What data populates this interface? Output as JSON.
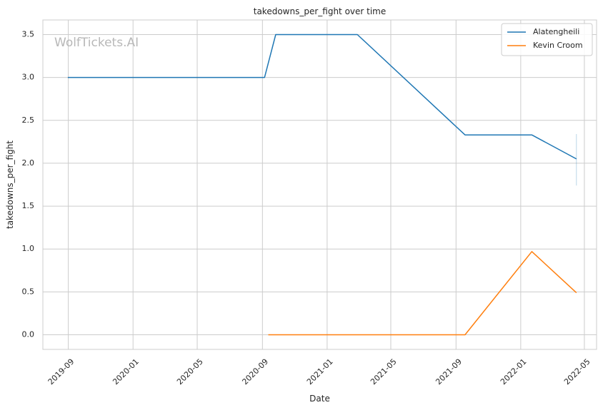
{
  "chart_data": {
    "type": "line",
    "title": "takedowns_per_fight over time",
    "xlabel": "Date",
    "ylabel": "takedowns_per_fight",
    "watermark": "WolfTickets.AI",
    "xlim": [
      "2019-07-15",
      "2022-05-24"
    ],
    "ylim": [
      -0.17,
      3.67
    ],
    "x_ticks": [
      "2019-09-01",
      "2020-01-01",
      "2020-05-01",
      "2020-09-01",
      "2021-01-01",
      "2021-05-01",
      "2021-09-01",
      "2022-01-01",
      "2022-05-01"
    ],
    "x_tick_labels": [
      "2019-09",
      "2020-01",
      "2020-05",
      "2020-09",
      "2021-01",
      "2021-05",
      "2021-09",
      "2022-01",
      "2022-05"
    ],
    "y_ticks": [
      0.0,
      0.5,
      1.0,
      1.5,
      2.0,
      2.5,
      3.0,
      3.5
    ],
    "y_tick_labels": [
      "0.0",
      "0.5",
      "1.0",
      "1.5",
      "2.0",
      "2.5",
      "3.0",
      "3.5"
    ],
    "grid": true,
    "legend_position": "top-right",
    "series": [
      {
        "name": "Alatengheili",
        "color": "#1f77b4",
        "x": [
          "2019-08-31",
          "2020-09-05",
          "2020-09-26",
          "2021-02-27",
          "2021-09-18",
          "2022-01-22",
          "2022-04-16"
        ],
        "y": [
          3.0,
          3.0,
          3.5,
          3.5,
          2.33,
          2.33,
          2.05
        ]
      },
      {
        "name": "Kevin Croom",
        "color": "#ff7f0e",
        "x": [
          "2020-09-12",
          "2021-09-18",
          "2022-01-22",
          "2022-04-16"
        ],
        "y": [
          0.0,
          0.0,
          0.97,
          0.49
        ]
      }
    ],
    "error_bar": {
      "x": "2022-04-16",
      "y_low": 1.74,
      "y_high": 2.34,
      "color": "#1f77b4"
    }
  }
}
